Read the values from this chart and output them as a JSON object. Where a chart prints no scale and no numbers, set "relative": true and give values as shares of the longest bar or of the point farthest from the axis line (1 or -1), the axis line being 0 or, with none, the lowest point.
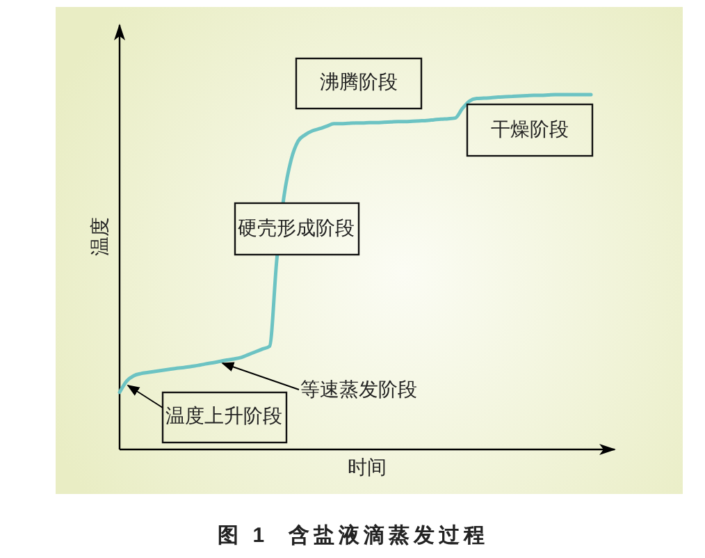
{
  "chart_data": {
    "type": "line",
    "title": "图 1  含盐液滴蒸发过程",
    "xlabel": "时间",
    "ylabel": "温度",
    "relative": true,
    "color": "#6cc3c3",
    "categories": [
      null,
      null,
      null,
      null,
      null,
      null,
      null,
      null,
      null,
      null,
      null,
      null,
      null,
      null,
      null,
      null,
      null,
      null,
      null,
      null,
      null,
      null,
      null,
      null,
      null,
      null,
      null,
      null,
      null,
      null,
      null,
      null,
      null,
      null,
      null,
      null,
      null,
      null,
      null,
      null,
      null,
      null,
      null,
      null,
      null,
      null,
      null,
      null,
      null,
      null,
      null,
      null,
      null,
      null,
      null,
      null,
      null,
      null,
      null,
      null,
      null,
      null,
      null,
      null,
      null,
      null,
      null
    ],
    "values": [
      0.161,
      0.193,
      0.208,
      0.214,
      0.217,
      0.22,
      0.223,
      0.226,
      0.229,
      0.231,
      0.234,
      0.237,
      0.241,
      0.244,
      0.248,
      0.252,
      0.255,
      0.259,
      0.267,
      0.275,
      0.283,
      0.291,
      0.533,
      0.711,
      0.815,
      0.869,
      0.887,
      0.898,
      0.904,
      0.911,
      0.918,
      0.918,
      0.919,
      0.92,
      0.92,
      0.921,
      0.921,
      0.922,
      0.923,
      0.924,
      0.924,
      0.925,
      0.926,
      0.927,
      0.929,
      0.931,
      0.932,
      0.934,
      0.961,
      0.982,
      0.989,
      0.99,
      0.991,
      0.993,
      0.994,
      0.995,
      0.996,
      0.997,
      0.998,
      0.998,
      0.999,
      1,
      1,
      1,
      1,
      1,
      1
    ],
    "annotations": [
      "沸腾阶段",
      "干燥阶段",
      "硬壳形成阶段",
      "等速蒸发阶段",
      "温度上升阶段"
    ]
  }
}
